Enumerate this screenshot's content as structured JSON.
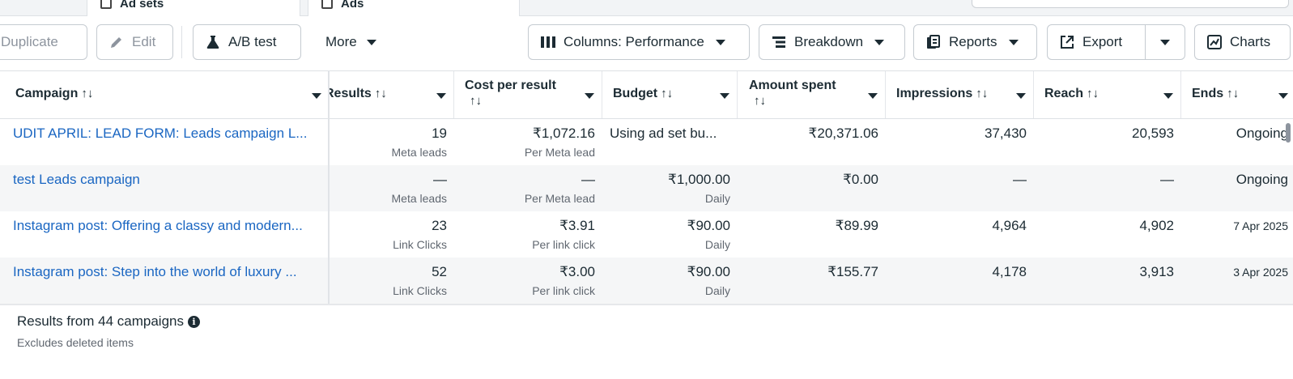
{
  "tabs": {
    "tab1": "Ad sets",
    "tab2": "Ads"
  },
  "toolbar": {
    "duplicate": "Duplicate",
    "edit": "Edit",
    "ab_test": "A/B test",
    "more": "More",
    "columns": "Columns: Performance",
    "breakdown": "Breakdown",
    "reports": "Reports",
    "export": "Export",
    "charts": "Charts"
  },
  "columns": {
    "campaign": "Campaign",
    "results": "Results",
    "cost_per_result": "Cost per result",
    "budget": "Budget",
    "amount_spent": "Amount spent",
    "impressions": "Impressions",
    "reach": "Reach",
    "ends": "Ends",
    "sort_glyph": "↑↓"
  },
  "rows": [
    {
      "campaign": "UDIT APRIL: LEAD FORM: Leads campaign L...",
      "results": "19",
      "results_type": "Meta leads",
      "cost": "₹1,072.16",
      "cost_type": "Per Meta lead",
      "budget": "Using ad set bu...",
      "budget_type": "",
      "spent": "₹20,371.06",
      "impressions": "37,430",
      "reach": "20,593",
      "ends": "Ongoing"
    },
    {
      "campaign": "test Leads campaign",
      "results": "—",
      "results_type": "Meta leads",
      "cost": "—",
      "cost_type": "Per Meta lead",
      "budget": "₹1,000.00",
      "budget_type": "Daily",
      "spent": "₹0.00",
      "impressions": "—",
      "reach": "—",
      "ends": "Ongoing"
    },
    {
      "campaign": "Instagram post: Offering a classy and modern...",
      "results": "23",
      "results_type": "Link Clicks",
      "cost": "₹3.91",
      "cost_type": "Per link click",
      "budget": "₹90.00",
      "budget_type": "Daily",
      "spent": "₹89.99",
      "impressions": "4,964",
      "reach": "4,902",
      "ends": "7 Apr 2025"
    },
    {
      "campaign": "Instagram post: Step into the world of luxury ...",
      "results": "52",
      "results_type": "Link Clicks",
      "cost": "₹3.00",
      "cost_type": "Per link click",
      "budget": "₹90.00",
      "budget_type": "Daily",
      "spent": "₹155.77",
      "impressions": "4,178",
      "reach": "3,913",
      "ends": "3 Apr 2025"
    }
  ],
  "footer": {
    "results_text": "Results from 44 campaigns",
    "excludes_text": "Excludes deleted items"
  }
}
